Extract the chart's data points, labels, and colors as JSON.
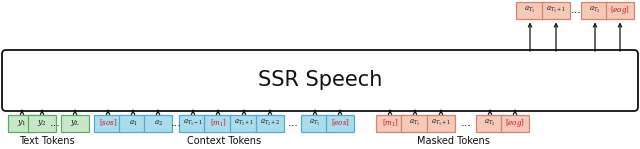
{
  "title": "SSR Speech",
  "box_color_green": "#c8e6c8",
  "box_color_blue": "#aadcee",
  "box_color_pink": "#f5c8b8",
  "box_border_green": "#5aaa60",
  "box_border_blue": "#55aacc",
  "box_border_pink": "#cc8870",
  "text_color_red": "#cc1111",
  "text_color_black": "#111111",
  "main_box_bg": "#ffffff",
  "main_box_border": "#111111",
  "label_text_tokens": "Text Tokens",
  "label_context_tokens": "Context Tokens",
  "label_masked_tokens": "Masked Tokens",
  "figsize": [
    6.4,
    1.49
  ],
  "dpi": 100
}
